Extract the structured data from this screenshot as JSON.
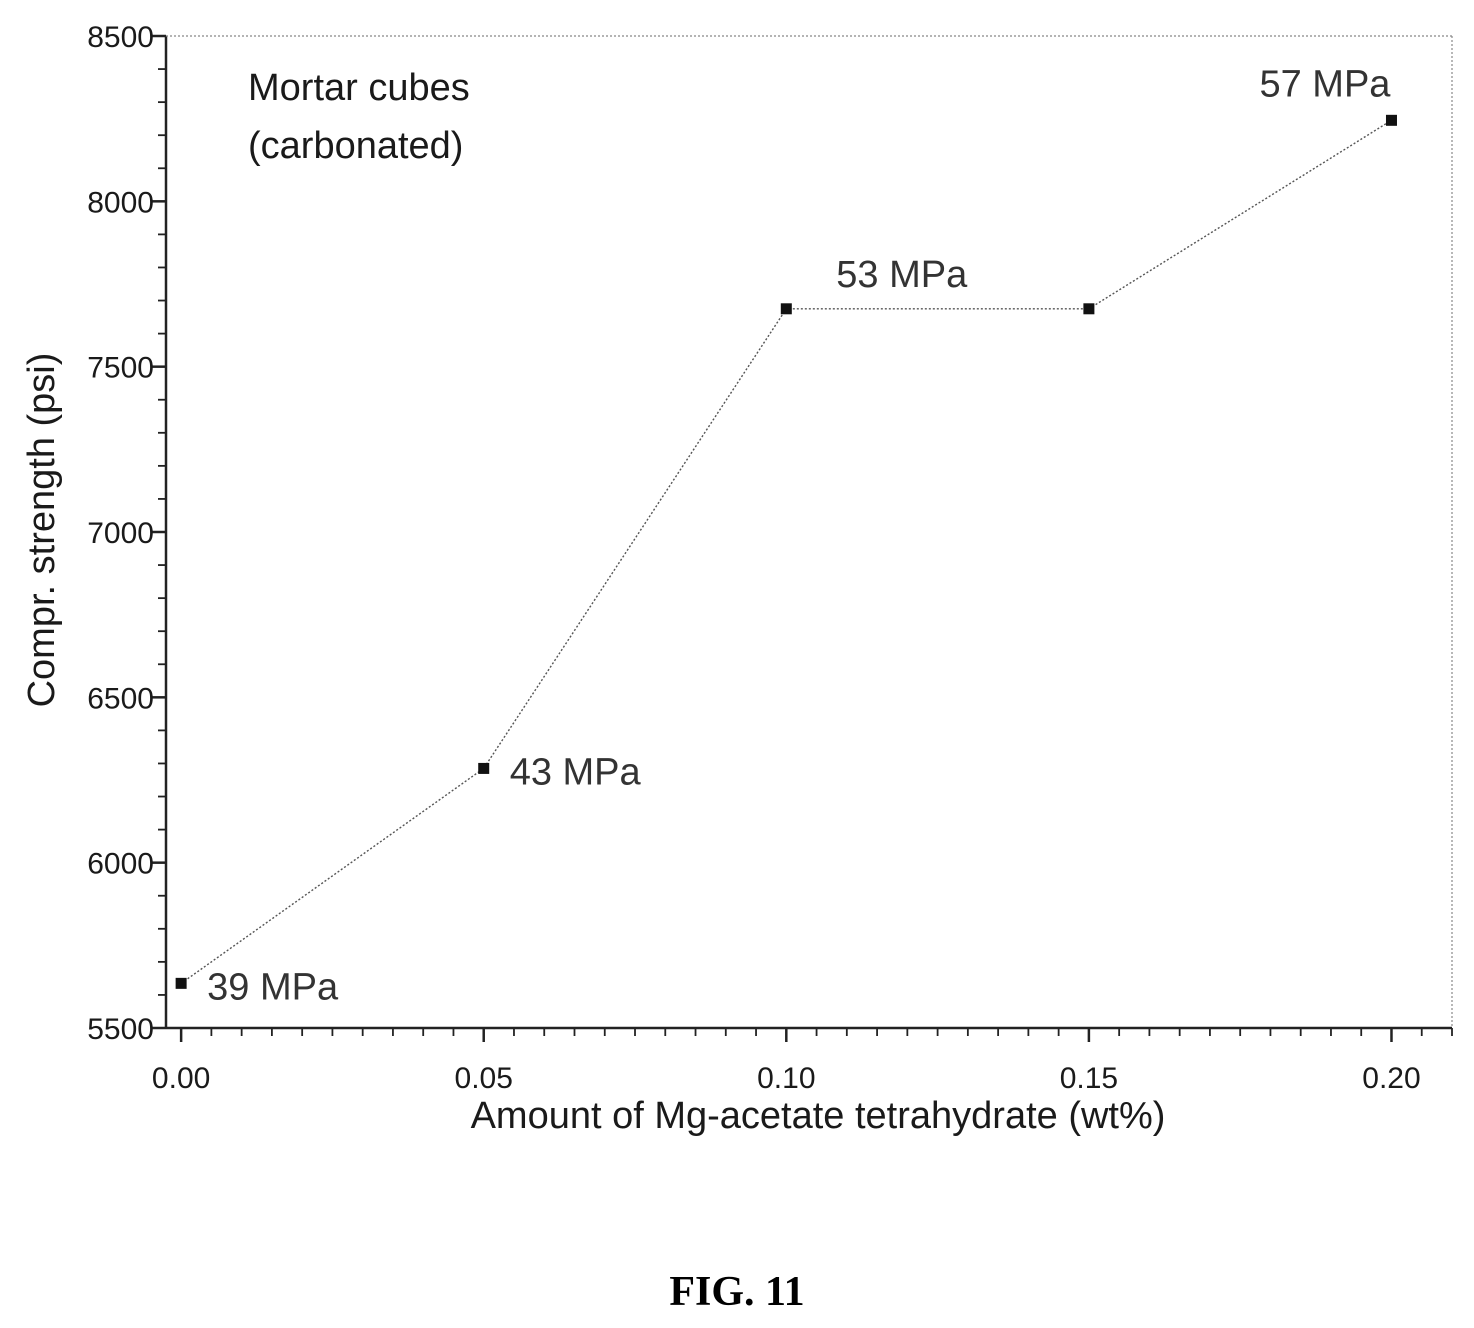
{
  "chart_data": {
    "type": "line",
    "x": [
      0.0,
      0.05,
      0.1,
      0.15,
      0.2
    ],
    "y": [
      5635,
      6285,
      7675,
      7675,
      8245
    ],
    "point_labels": [
      "39 MPa",
      "43 MPa",
      "53 MPa",
      "",
      "57 MPa"
    ],
    "xlabel": "Amount of Mg-acetate tetrahydrate (wt%)",
    "ylabel": "Compr. strength (psi)",
    "xlim": [
      -0.0025,
      0.21
    ],
    "ylim": [
      5500,
      8500
    ],
    "x_ticks": [
      "0.00",
      "0.05",
      "0.10",
      "0.15",
      "0.20"
    ],
    "y_ticks": [
      "5500",
      "6000",
      "6500",
      "7000",
      "7500",
      "8000",
      "8500"
    ],
    "annotation_lines": [
      "Mortar cubes",
      "(carbonated)"
    ],
    "grid": false,
    "line_color": "#555555",
    "marker_color": "#111111"
  },
  "caption": "FIG. 11"
}
